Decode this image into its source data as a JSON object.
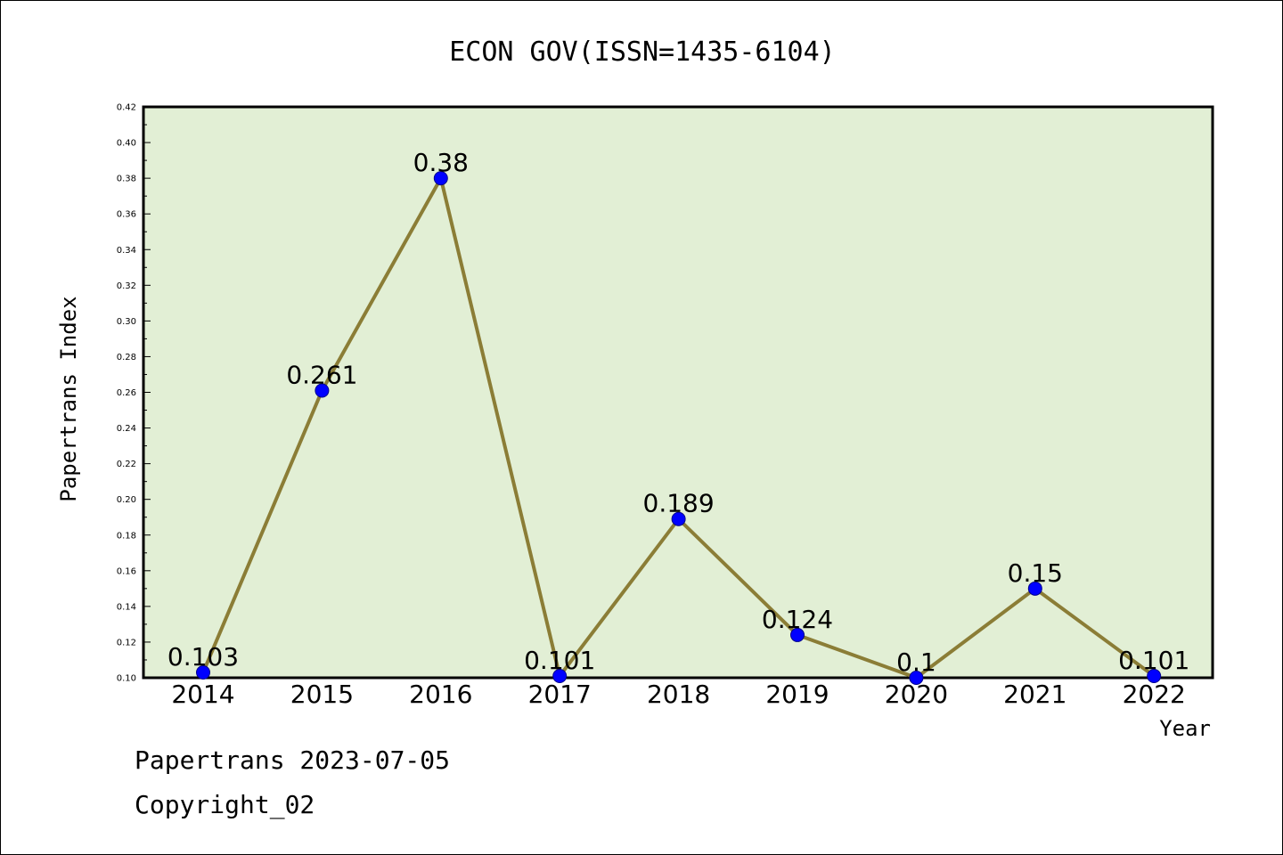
{
  "chart_data": {
    "type": "line",
    "title": "ECON GOV(ISSN=1435-6104)",
    "xlabel": "Year",
    "ylabel": "Papertrans Index",
    "categories": [
      "2014",
      "2015",
      "2016",
      "2017",
      "2018",
      "2019",
      "2020",
      "2021",
      "2022"
    ],
    "values": [
      0.103,
      0.261,
      0.38,
      0.101,
      0.189,
      0.124,
      0.1,
      0.15,
      0.101
    ],
    "data_labels": [
      "0.103",
      "0.261",
      "0.38",
      "0.101",
      "0.189",
      "0.124",
      "0.1",
      "0.15",
      "0.101"
    ],
    "ylim": [
      0.1,
      0.42
    ],
    "yticks": [
      "0.10",
      "0.12",
      "0.14",
      "0.16",
      "0.18",
      "0.20",
      "0.22",
      "0.24",
      "0.26",
      "0.28",
      "0.30",
      "0.32",
      "0.34",
      "0.36",
      "0.38",
      "0.40",
      "0.42"
    ],
    "grid": false,
    "colors": {
      "plot_background": "#e2efd5",
      "line": "#8b7d36",
      "marker": "#0000ff",
      "marker_edge": "#00008b"
    }
  },
  "footer": {
    "line1": "Papertrans 2023-07-05",
    "line2": "Copyright_02"
  }
}
